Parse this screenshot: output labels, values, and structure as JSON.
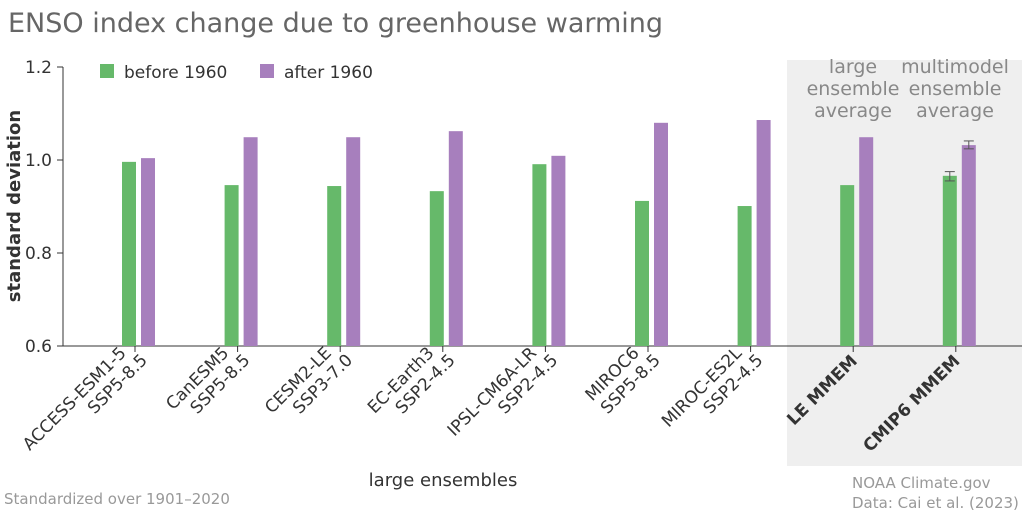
{
  "chart_data": {
    "type": "bar",
    "title": "ENSO index change due to greenhouse warming",
    "ylabel": "standard deviation",
    "xlabel": "large ensembles",
    "ylim": [
      0.6,
      1.2
    ],
    "yticks": [
      "0.6",
      "0.8",
      "1.0",
      "1.2"
    ],
    "categories": [
      [
        "ACCESS-ESM1-5",
        "SSP5-8.5"
      ],
      [
        "CanESM5",
        "SSP5-8.5"
      ],
      [
        "CESM2-LE",
        "SSP3-7.0"
      ],
      [
        "EC-Earth3",
        "SSP2-4.5"
      ],
      [
        "IPSL-CM6A-LR",
        "SSP2-4.5"
      ],
      [
        "MIROC6",
        "SSP5-8.5"
      ],
      [
        "MIROC-ES2L",
        "SSP2-4.5"
      ],
      [
        "LE MMEM"
      ],
      [
        "CMIP6 MMEM"
      ]
    ],
    "series": [
      {
        "name": "before 1960",
        "color": "#66b96a",
        "values": [
          0.996,
          0.946,
          0.944,
          0.933,
          0.991,
          0.912,
          0.901,
          0.946,
          0.966
        ],
        "error": [
          null,
          null,
          null,
          null,
          null,
          null,
          null,
          null,
          [
            0.955,
            0.975
          ]
        ]
      },
      {
        "name": "after 1960",
        "color": "#a77fbd",
        "values": [
          1.004,
          1.049,
          1.049,
          1.062,
          1.009,
          1.08,
          1.086,
          1.049,
          1.032
        ],
        "error": [
          null,
          null,
          null,
          null,
          null,
          null,
          null,
          null,
          [
            1.024,
            1.041
          ]
        ]
      }
    ],
    "legend": "top-left",
    "annotations": [
      [
        "large",
        "ensemble",
        "average"
      ],
      [
        "multimodel",
        "ensemble",
        "average"
      ]
    ],
    "shaded_region": "LE MMEM to CMIP6 MMEM",
    "footer_left": "Standardized over 1901–2020",
    "footer_right": [
      "NOAA Climate.gov",
      "Data: Cai et al. (2023)"
    ]
  }
}
